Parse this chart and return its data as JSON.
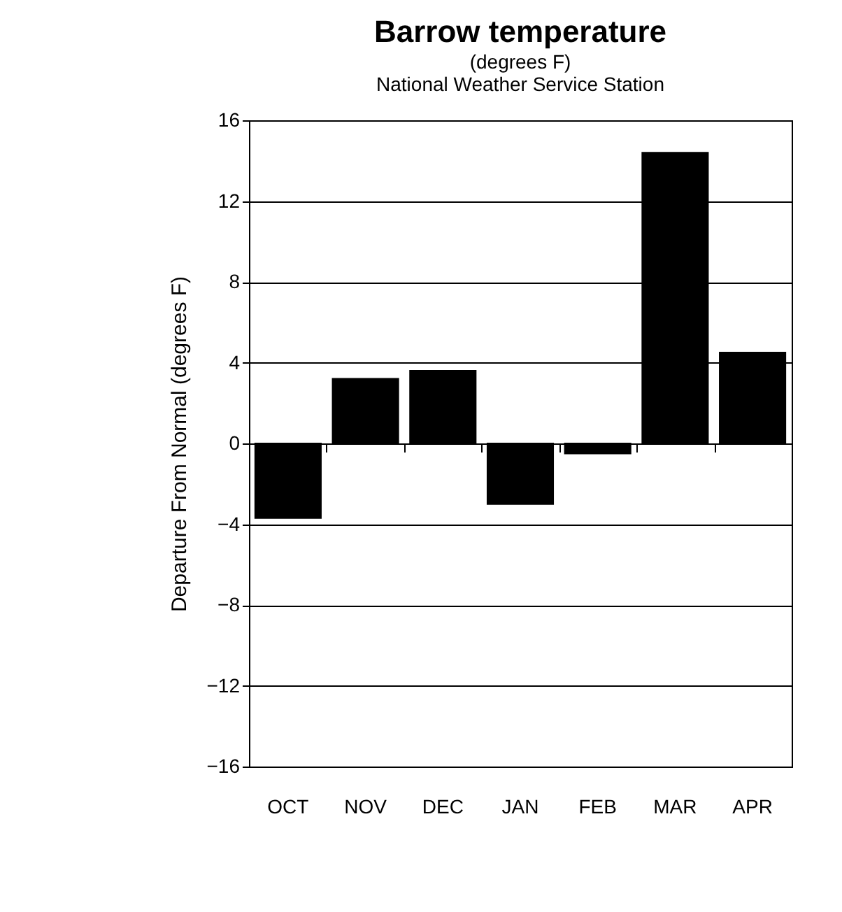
{
  "chart_data": {
    "type": "bar",
    "title": "Barrow temperature",
    "subtitle": [
      "(degrees F)",
      "National Weather Service Station"
    ],
    "ylabel": "Departure From Normal (degrees F)",
    "categories": [
      "OCT",
      "NOV",
      "DEC",
      "JAN",
      "FEB",
      "MAR",
      "APR"
    ],
    "values": [
      -3.7,
      3.2,
      3.6,
      -3.0,
      -0.5,
      14.4,
      4.5
    ],
    "color": "#000000",
    "ylim": [
      -16,
      16
    ],
    "yticks": [
      -16,
      -12,
      -8,
      -4,
      0,
      4,
      8,
      12,
      16
    ],
    "grid": "y"
  }
}
